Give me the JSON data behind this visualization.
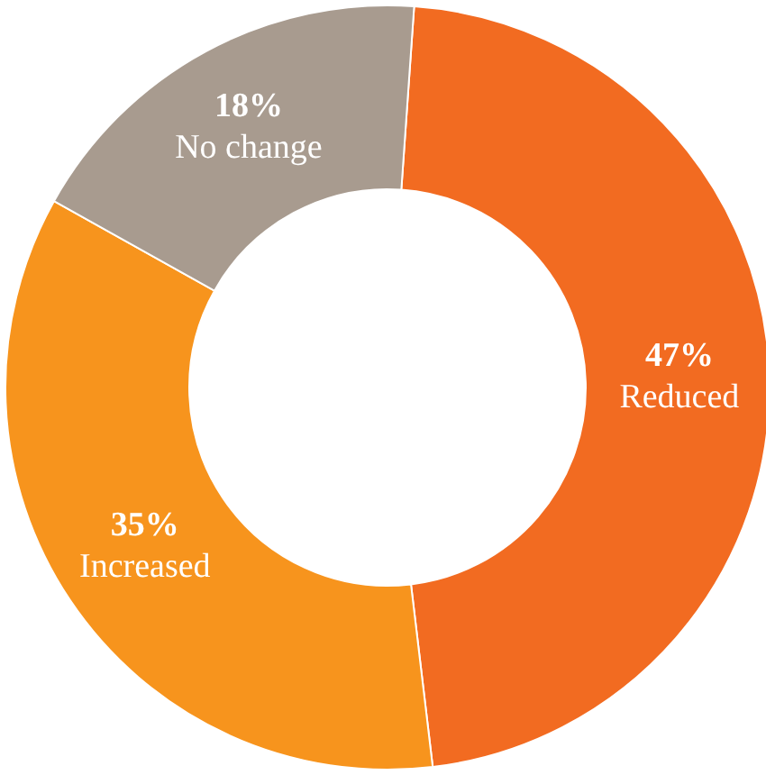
{
  "chart_data": {
    "type": "donut",
    "categories": [
      "Reduced",
      "Increased",
      "No change"
    ],
    "values": [
      47,
      35,
      18
    ],
    "colors": [
      "#f26b21",
      "#f7941d",
      "#a89b8f"
    ],
    "value_labels": [
      "47%",
      "35%",
      "18%"
    ]
  }
}
